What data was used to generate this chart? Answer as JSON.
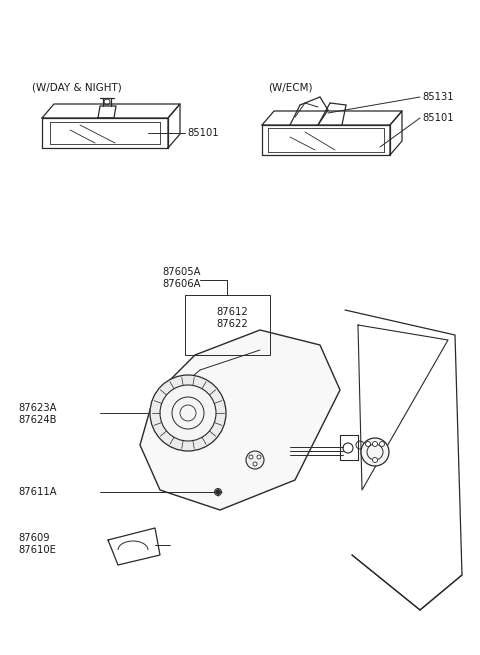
{
  "bg_color": "#ffffff",
  "line_color": "#2a2a2a",
  "text_color": "#1a1a1a",
  "font_size": 7.2,
  "subtitle_left": "(W/DAY & NIGHT)",
  "subtitle_right": "(W/ECM)",
  "labels": {
    "85101_left": "85101",
    "85131": "85131",
    "85101_right": "85101",
    "87605A": "87605A",
    "87606A": "87606A",
    "87612": "87612",
    "87622": "87622",
    "87623A": "87623A",
    "87624B": "87624B",
    "87611A": "87611A",
    "87609": "87609",
    "87610E": "87610E"
  }
}
